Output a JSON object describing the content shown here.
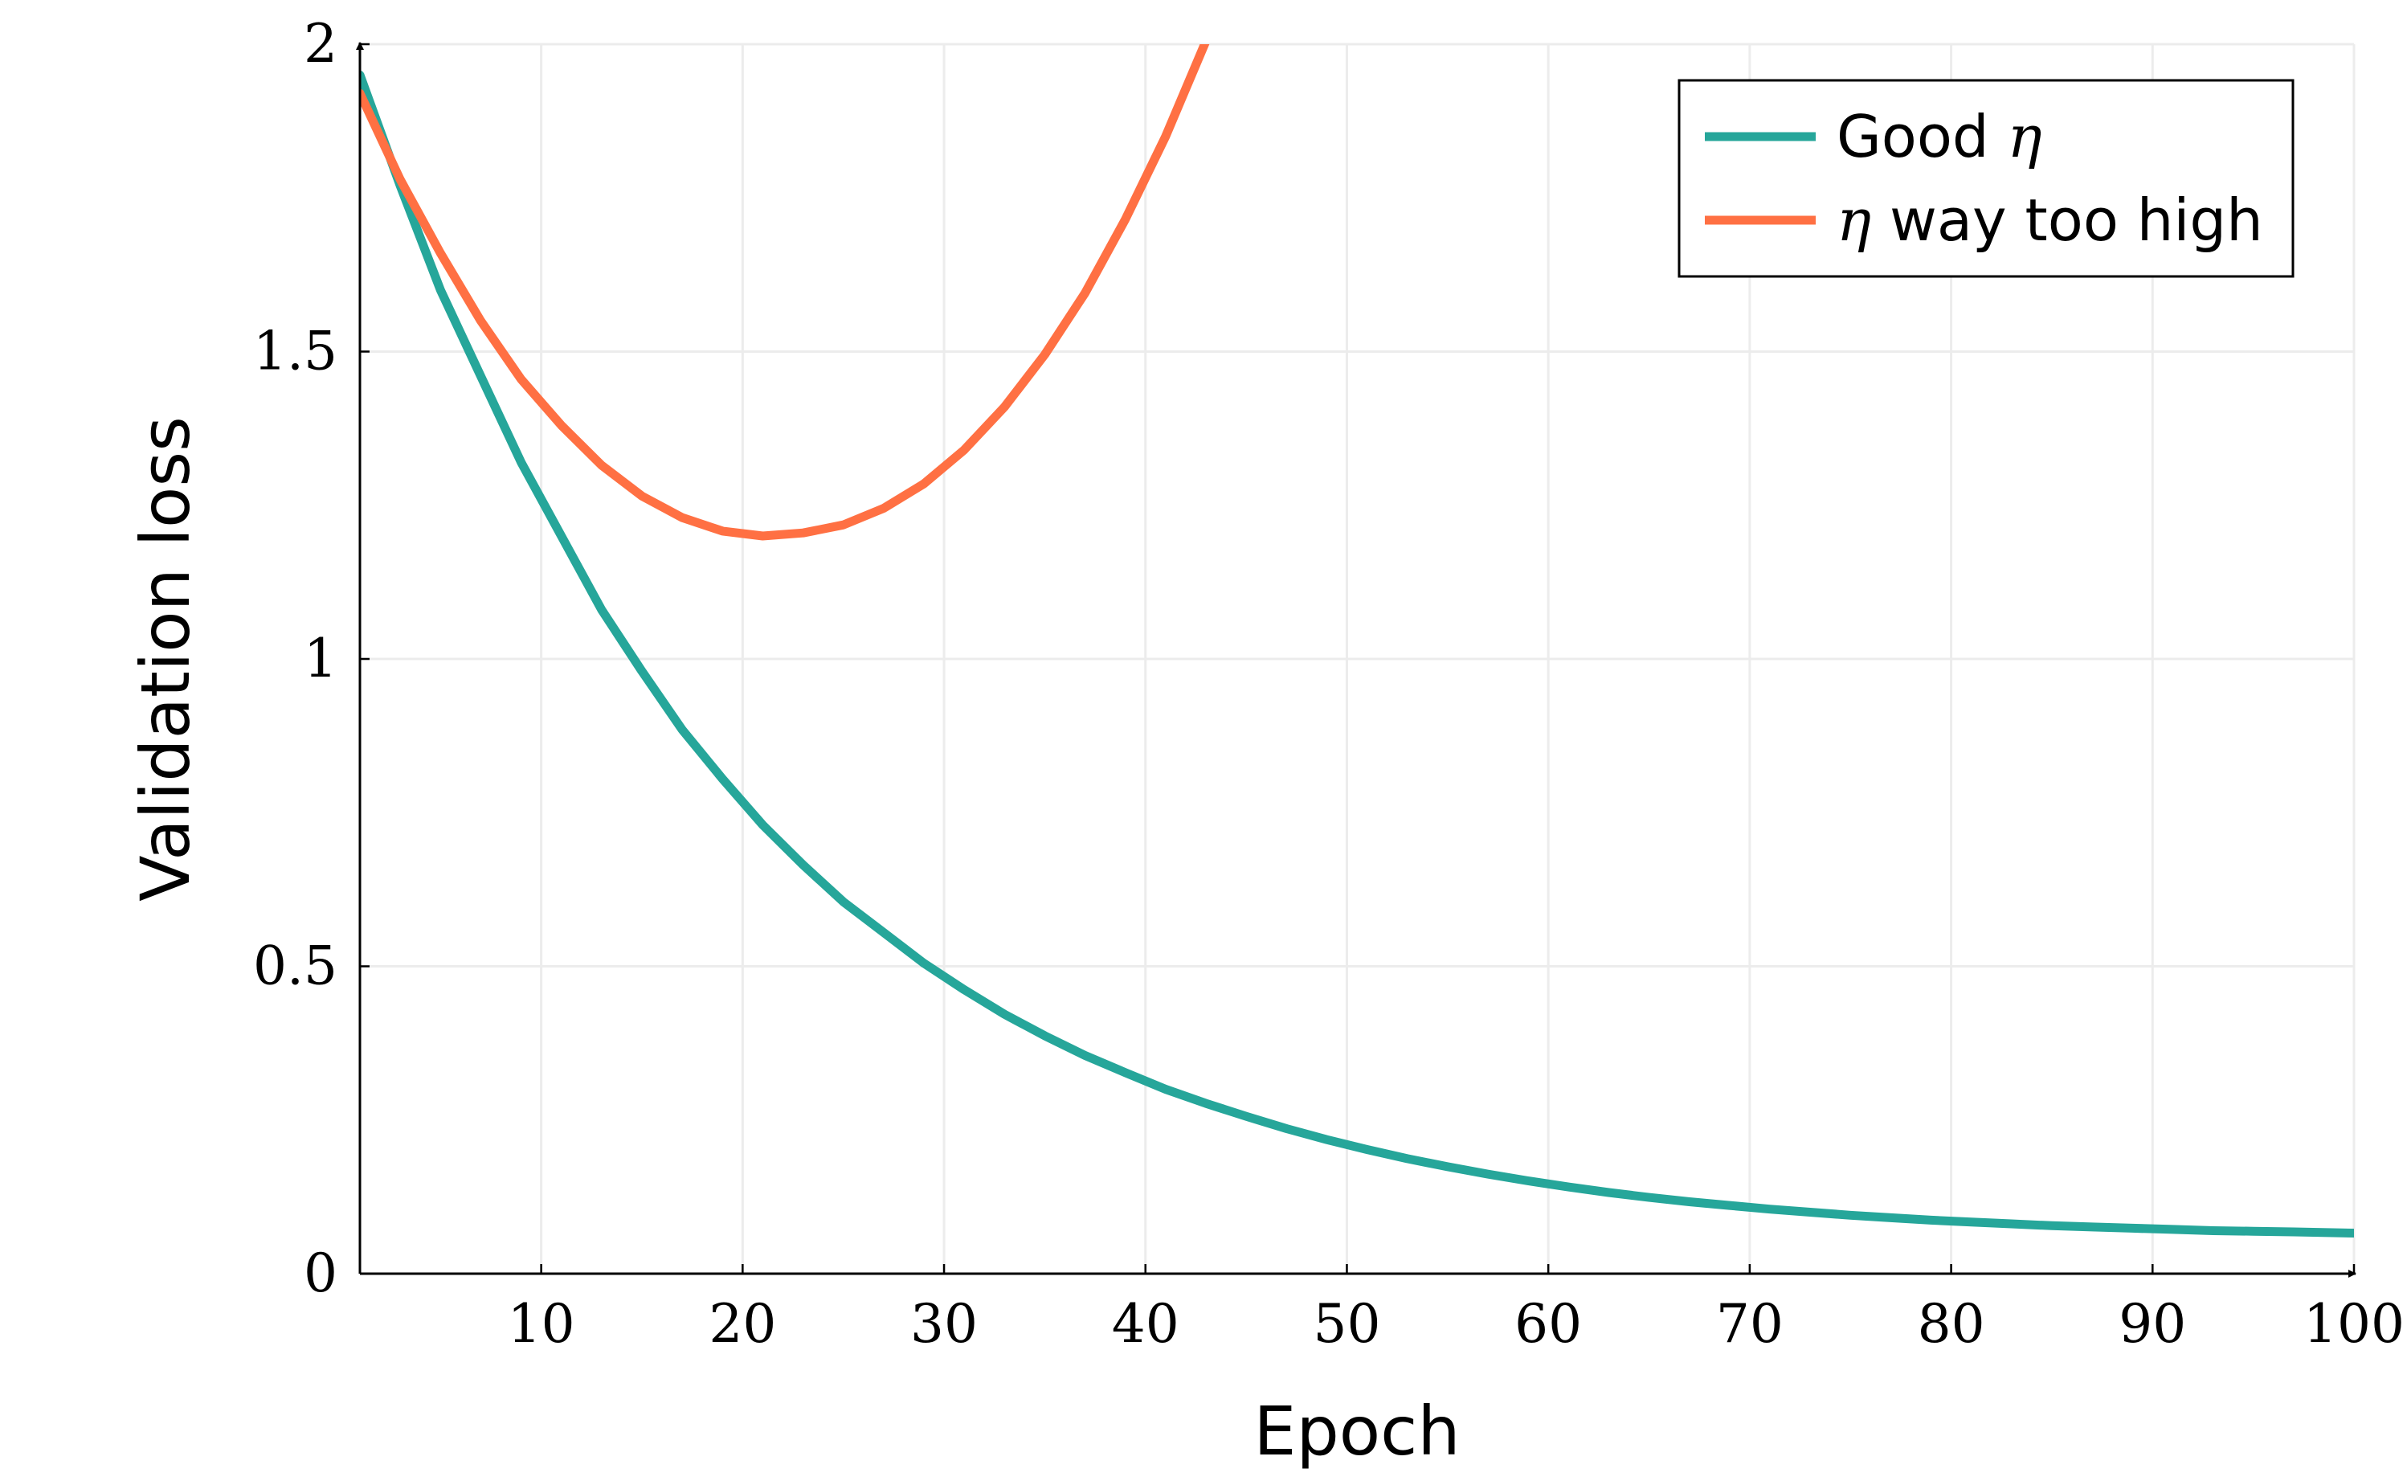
{
  "chart_data": {
    "type": "line",
    "title": "",
    "xlabel": "Epoch",
    "ylabel": "Validation loss",
    "xlim": [
      1,
      100
    ],
    "ylim": [
      0,
      2
    ],
    "x_ticks": [
      10,
      20,
      30,
      40,
      50,
      60,
      70,
      80,
      90,
      100
    ],
    "x_tick_labels": [
      "10",
      "20",
      "30",
      "40",
      "50",
      "60",
      "70",
      "80",
      "90",
      "100"
    ],
    "y_ticks": [
      0,
      0.5,
      1,
      1.5,
      2
    ],
    "y_tick_labels": [
      "0",
      "0.5",
      "1",
      "1.5",
      "2"
    ],
    "grid": true,
    "legend_position": "top-right",
    "series": [
      {
        "name": "Good η",
        "legend_text": "Good ",
        "legend_symbol": "η",
        "color": "#26a69a",
        "x": [
          1,
          3,
          5,
          7,
          9,
          11,
          13,
          15,
          17,
          19,
          21,
          23,
          25,
          27,
          29,
          31,
          33,
          35,
          37,
          39,
          41,
          43,
          45,
          47,
          49,
          51,
          53,
          55,
          57,
          59,
          61,
          63,
          65,
          67,
          69,
          71,
          73,
          75,
          77,
          79,
          81,
          83,
          85,
          87,
          89,
          91,
          93,
          95,
          97,
          100
        ],
        "values": [
          1.95,
          1.77,
          1.6,
          1.46,
          1.32,
          1.2,
          1.08,
          0.98,
          0.885,
          0.805,
          0.73,
          0.665,
          0.605,
          0.555,
          0.505,
          0.462,
          0.422,
          0.387,
          0.355,
          0.327,
          0.3,
          0.277,
          0.256,
          0.236,
          0.218,
          0.202,
          0.187,
          0.174,
          0.162,
          0.151,
          0.141,
          0.132,
          0.124,
          0.117,
          0.111,
          0.105,
          0.1,
          0.095,
          0.091,
          0.087,
          0.084,
          0.081,
          0.078,
          0.076,
          0.074,
          0.072,
          0.07,
          0.069,
          0.068,
          0.066
        ]
      },
      {
        "name": "η way too high",
        "legend_text": " way too high",
        "legend_symbol": "η",
        "color": "#ff7043",
        "x": [
          1,
          3,
          5,
          7,
          9,
          11,
          13,
          15,
          17,
          19,
          21,
          23,
          25,
          27,
          29,
          31,
          33,
          35,
          37,
          39,
          41,
          43,
          45
        ],
        "values": [
          1.92,
          1.78,
          1.66,
          1.55,
          1.455,
          1.38,
          1.315,
          1.265,
          1.23,
          1.208,
          1.2,
          1.205,
          1.218,
          1.245,
          1.285,
          1.34,
          1.41,
          1.495,
          1.595,
          1.715,
          1.85,
          2.005,
          2.18
        ]
      }
    ]
  }
}
